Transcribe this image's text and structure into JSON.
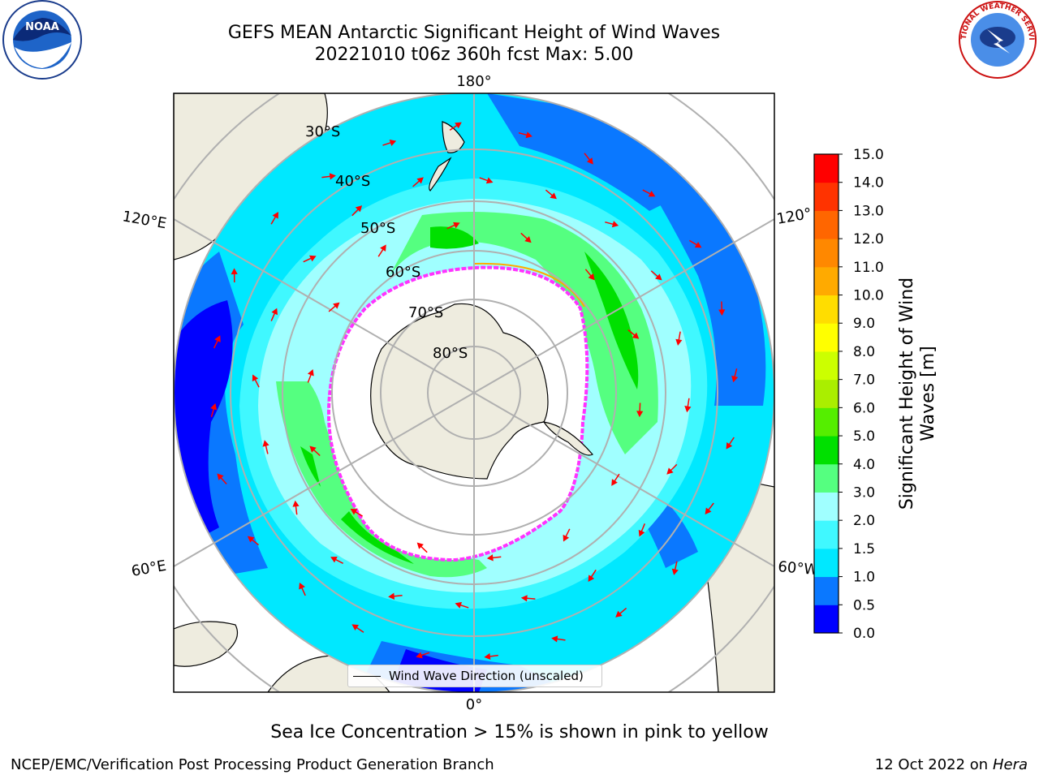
{
  "title": "GEFS MEAN Antarctic Significant Height of Wind Waves",
  "subtitle": "20221010 t06z 360h fcst   Max: 5.00",
  "logos": {
    "left": "NOAA",
    "right": "NATIONAL WEATHER SERVICE"
  },
  "map": {
    "projection": "south-polar-stereographic",
    "longitude_labels": {
      "top": "180°",
      "bottom": "0°",
      "upper_left": "120°E",
      "lower_left": "60°E",
      "upper_right": "120°",
      "lower_right": "60°W"
    },
    "latitude_labels": [
      "30°S",
      "40°S",
      "50°S",
      "60°S",
      "70°S",
      "80°S"
    ],
    "legend_label": "Wind Wave Direction (unscaled)",
    "colors": {
      "land": "#eeecdf",
      "ice_free": "#ffffff",
      "sea_ice_edge": "#ff33ff",
      "arrows": "#ff0000",
      "grid": "#b0b0b0"
    }
  },
  "colorbar": {
    "label": "Significant Height of Wind Waves [m]",
    "label_line1": "Significant Height of Wind",
    "label_line2": "Waves [m]",
    "ticks": [
      "0.0",
      "0.5",
      "1.0",
      "1.5",
      "2.0",
      "3.0",
      "4.0",
      "5.0",
      "6.0",
      "7.0",
      "8.0",
      "9.0",
      "10.0",
      "11.0",
      "12.0",
      "13.0",
      "14.0",
      "15.0"
    ],
    "colors": [
      "#0000ff",
      "#0a78ff",
      "#00e8ff",
      "#40f8ff",
      "#a0ffff",
      "#55ff80",
      "#00e000",
      "#55ee00",
      "#aaee00",
      "#ccff00",
      "#ffff00",
      "#ffdd00",
      "#ffaa00",
      "#ff8800",
      "#ff6600",
      "#ff3300",
      "#ff0000"
    ]
  },
  "caption": "Sea Ice Concentration > 15% is shown in pink to yellow",
  "footer": {
    "left": "NCEP/EMC/Verification Post Processing Product Generation Branch",
    "right_prefix": "12 Oct 2022 on ",
    "right_machine": "Hera"
  }
}
